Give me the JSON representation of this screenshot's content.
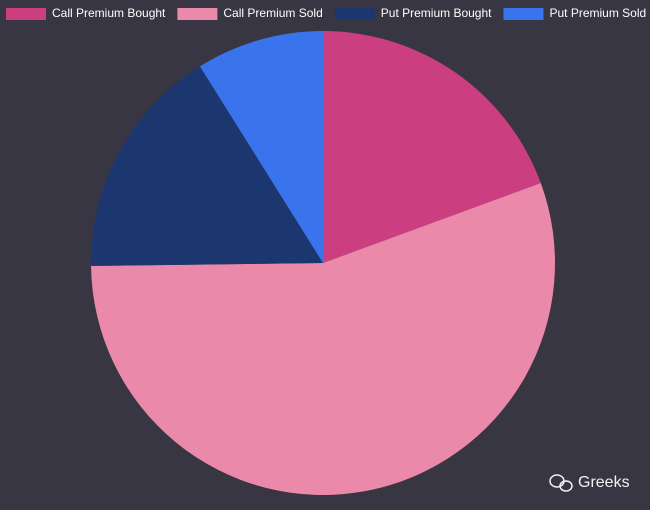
{
  "chart_data": {
    "type": "pie",
    "categories": [
      "Call Premium Bought",
      "Call Premium Sold",
      "Put Premium Bought",
      "Put Premium Sold"
    ],
    "values": [
      19.4,
      55.4,
      16.3,
      8.9
    ],
    "colors": [
      "#cb3f80",
      "#eb89aa",
      "#1c366f",
      "#3a74ec"
    ],
    "legend": "top"
  },
  "watermark": "Greeks"
}
